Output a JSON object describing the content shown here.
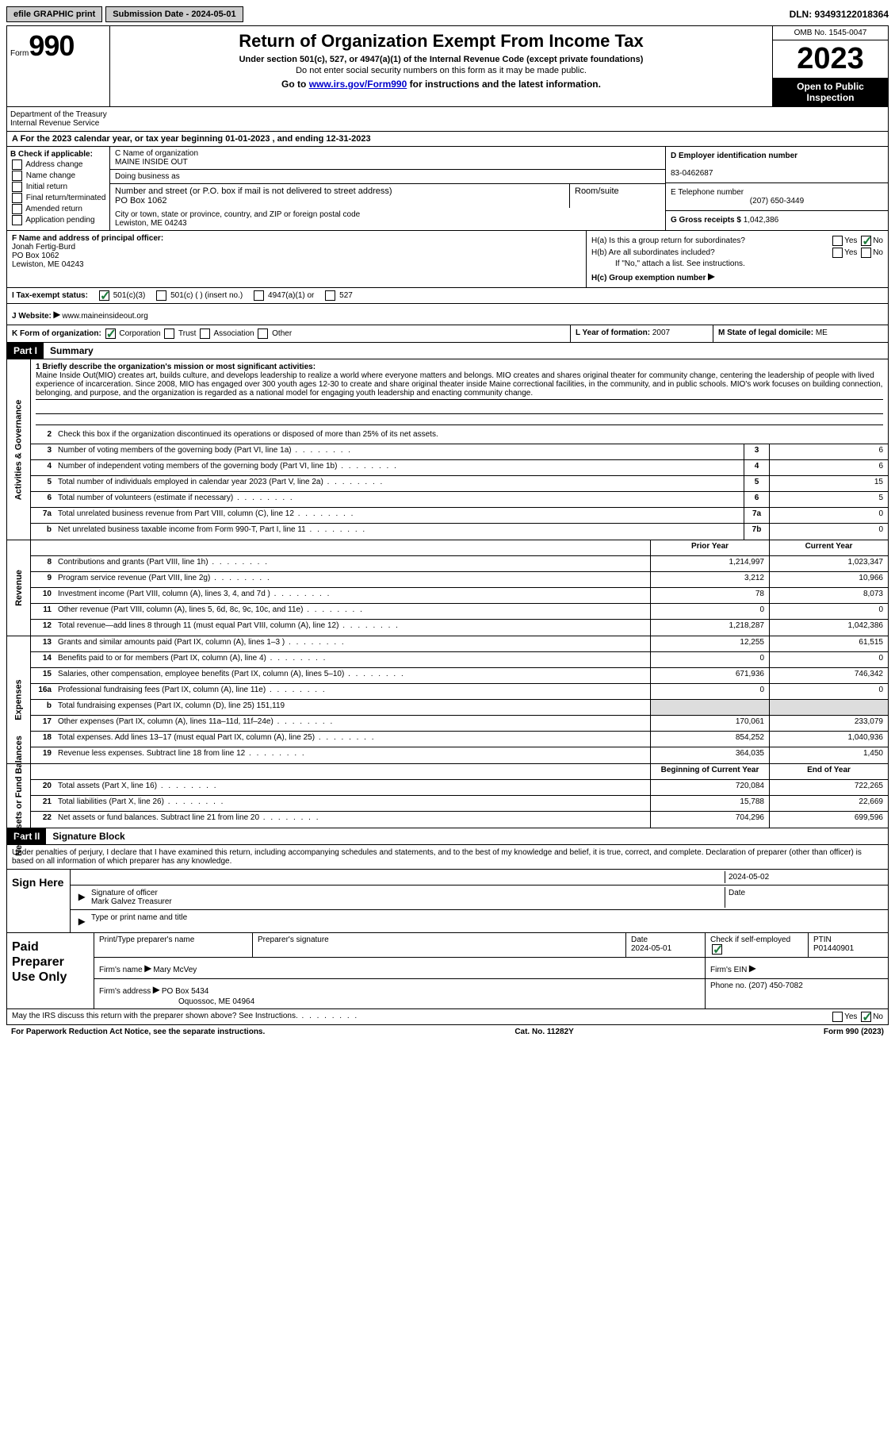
{
  "topbar": {
    "efile": "efile GRAPHIC print",
    "submission": "Submission Date - 2024-05-01",
    "dln": "DLN: 93493122018364"
  },
  "header": {
    "form_label": "Form",
    "form_num": "990",
    "title": "Return of Organization Exempt From Income Tax",
    "subtitle": "Under section 501(c), 527, or 4947(a)(1) of the Internal Revenue Code (except private foundations)",
    "note": "Do not enter social security numbers on this form as it may be made public.",
    "goto_prefix": "Go to ",
    "goto_link": "www.irs.gov/Form990",
    "goto_suffix": " for instructions and the latest information.",
    "omb": "OMB No. 1545-0047",
    "year": "2023",
    "open_pub": "Open to Public Inspection",
    "dept": "Department of the Treasury\nInternal Revenue Service"
  },
  "row_a": "A For the 2023 calendar year, or tax year beginning 01-01-2023     , and ending 12-31-2023",
  "section_b": {
    "b_label": "B Check if applicable:",
    "opts": [
      "Address change",
      "Name change",
      "Initial return",
      "Final return/terminated",
      "Amended return",
      "Application pending"
    ],
    "c_name_label": "C Name of organization",
    "c_name": "MAINE INSIDE OUT",
    "dba_label": "Doing business as",
    "addr_label": "Number and street (or P.O. box if mail is not delivered to street address)",
    "room_label": "Room/suite",
    "addr": "PO Box 1062",
    "city_label": "City or town, state or province, country, and ZIP or foreign postal code",
    "city": "Lewiston, ME  04243",
    "d_label": "D Employer identification number",
    "d_val": "83-0462687",
    "e_label": "E Telephone number",
    "e_val": "(207) 650-3449",
    "g_label": "G Gross receipts $ ",
    "g_val": "1,042,386"
  },
  "section_fh": {
    "f_label": "F  Name and address of principal officer:",
    "f_name": "Jonah Fertig-Burd",
    "f_addr": "PO Box 1062",
    "f_city": "Lewiston, ME  04243",
    "ha_label": "H(a)  Is this a group return for subordinates?",
    "hb_label": "H(b)  Are all subordinates included?",
    "hb_note": "If \"No,\" attach a list. See instructions.",
    "hc_label": "H(c)  Group exemption number  ",
    "yes": "Yes",
    "no": "No"
  },
  "tax_status": {
    "i_label": "I   Tax-exempt status:",
    "opt1": "501(c)(3)",
    "opt2": "501(c) (  ) (insert no.)",
    "opt3": "4947(a)(1) or",
    "opt4": "527"
  },
  "website": {
    "j_label": "J   Website: ",
    "url": "www.maineinsideout.org"
  },
  "k_row": {
    "k_label": "K Form of organization:",
    "opts": [
      "Corporation",
      "Trust",
      "Association",
      "Other"
    ],
    "l_label": "L Year of formation: ",
    "l_val": "2007",
    "m_label": "M State of legal domicile: ",
    "m_val": "ME"
  },
  "part1": {
    "header": "Part I",
    "title": "Summary",
    "mission_label": "1   Briefly describe the organization's mission or most significant activities:",
    "mission": "Maine Inside Out(MIO) creates art, builds culture, and develops leadership to realize a world where everyone matters and belongs. MIO creates and shares original theater for community change, centering the leadership of people with lived experience of incarceration. Since 2008, MIO has engaged over 300 youth ages 12-30 to create and share original theater inside Maine correctional facilities, in the community, and in public schools. MIO's work focuses on building connection, belonging, and purpose, and the organization is regarded as a national model for engaging youth leadership and enacting community change.",
    "line2": "Check this box      if the organization discontinued its operations or disposed of more than 25% of its net assets.",
    "side_activities": "Activities & Governance",
    "side_revenue": "Revenue",
    "side_expenses": "Expenses",
    "side_net": "Net Assets or Fund Balances",
    "rows_gov": [
      {
        "n": "3",
        "d": "Number of voting members of the governing body (Part VI, line 1a)",
        "b": "3",
        "v": "6"
      },
      {
        "n": "4",
        "d": "Number of independent voting members of the governing body (Part VI, line 1b)",
        "b": "4",
        "v": "6"
      },
      {
        "n": "5",
        "d": "Total number of individuals employed in calendar year 2023 (Part V, line 2a)",
        "b": "5",
        "v": "15"
      },
      {
        "n": "6",
        "d": "Total number of volunteers (estimate if necessary)",
        "b": "6",
        "v": "5"
      },
      {
        "n": "7a",
        "d": "Total unrelated business revenue from Part VIII, column (C), line 12",
        "b": "7a",
        "v": "0"
      },
      {
        "n": "b",
        "d": "Net unrelated business taxable income from Form 990-T, Part I, line 11",
        "b": "7b",
        "v": "0"
      }
    ],
    "col_prior": "Prior Year",
    "col_current": "Current Year",
    "rows_rev": [
      {
        "n": "8",
        "d": "Contributions and grants (Part VIII, line 1h)",
        "p": "1,214,997",
        "c": "1,023,347"
      },
      {
        "n": "9",
        "d": "Program service revenue (Part VIII, line 2g)",
        "p": "3,212",
        "c": "10,966"
      },
      {
        "n": "10",
        "d": "Investment income (Part VIII, column (A), lines 3, 4, and 7d )",
        "p": "78",
        "c": "8,073"
      },
      {
        "n": "11",
        "d": "Other revenue (Part VIII, column (A), lines 5, 6d, 8c, 9c, 10c, and 11e)",
        "p": "0",
        "c": "0"
      },
      {
        "n": "12",
        "d": "Total revenue—add lines 8 through 11 (must equal Part VIII, column (A), line 12)",
        "p": "1,218,287",
        "c": "1,042,386"
      }
    ],
    "rows_exp": [
      {
        "n": "13",
        "d": "Grants and similar amounts paid (Part IX, column (A), lines 1–3 )",
        "p": "12,255",
        "c": "61,515"
      },
      {
        "n": "14",
        "d": "Benefits paid to or for members (Part IX, column (A), line 4)",
        "p": "0",
        "c": "0"
      },
      {
        "n": "15",
        "d": "Salaries, other compensation, employee benefits (Part IX, column (A), lines 5–10)",
        "p": "671,936",
        "c": "746,342"
      },
      {
        "n": "16a",
        "d": "Professional fundraising fees (Part IX, column (A), line 11e)",
        "p": "0",
        "c": "0"
      },
      {
        "n": "b",
        "d": "Total fundraising expenses (Part IX, column (D), line 25) 151,119",
        "p": "",
        "c": "",
        "gray": true
      },
      {
        "n": "17",
        "d": "Other expenses (Part IX, column (A), lines 11a–11d, 11f–24e)",
        "p": "170,061",
        "c": "233,079"
      },
      {
        "n": "18",
        "d": "Total expenses. Add lines 13–17 (must equal Part IX, column (A), line 25)",
        "p": "854,252",
        "c": "1,040,936"
      },
      {
        "n": "19",
        "d": "Revenue less expenses. Subtract line 18 from line 12",
        "p": "364,035",
        "c": "1,450"
      }
    ],
    "col_begin": "Beginning of Current Year",
    "col_end": "End of Year",
    "rows_net": [
      {
        "n": "20",
        "d": "Total assets (Part X, line 16)",
        "p": "720,084",
        "c": "722,265"
      },
      {
        "n": "21",
        "d": "Total liabilities (Part X, line 26)",
        "p": "15,788",
        "c": "22,669"
      },
      {
        "n": "22",
        "d": "Net assets or fund balances. Subtract line 21 from line 20",
        "p": "704,296",
        "c": "699,596"
      }
    ]
  },
  "part2": {
    "header": "Part II",
    "title": "Signature Block",
    "text": "Under penalties of perjury, I declare that I have examined this return, including accompanying schedules and statements, and to the best of my knowledge and belief, it is true, correct, and complete. Declaration of preparer (other than officer) is based on all information of which preparer has any knowledge.",
    "sign_here": "Sign Here",
    "sig_officer": "Signature of officer",
    "sig_name": "Mark Galvez  Treasurer",
    "sig_type": "Type or print name and title",
    "date_label": "Date",
    "date_val": "2024-05-02",
    "paid_label": "Paid Preparer Use Only",
    "print_name": "Print/Type preparer's name",
    "prep_sig": "Preparer's signature",
    "prep_date_label": "Date",
    "prep_date": "2024-05-01",
    "check_self": "Check       if self-employed",
    "ptin_label": "PTIN",
    "ptin": "P01440901",
    "firm_name_label": "Firm's name   ",
    "firm_name": "Mary McVey",
    "firm_ein_label": "Firm's EIN  ",
    "firm_addr_label": "Firm's address  ",
    "firm_addr": "PO Box 5434",
    "firm_city": "Oquossoc, ME  04964",
    "phone_label": "Phone no. ",
    "phone": "(207) 450-7082",
    "discuss": "May the IRS discuss this return with the preparer shown above? See Instructions.",
    "yes": "Yes",
    "no": "No"
  },
  "footer": {
    "paperwork": "For Paperwork Reduction Act Notice, see the separate instructions.",
    "cat": "Cat. No. 11282Y",
    "form": "Form 990 (2023)"
  }
}
